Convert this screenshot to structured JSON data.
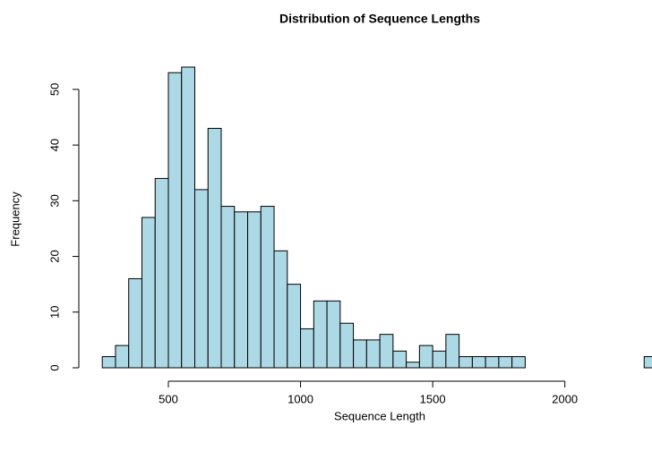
{
  "chart_data": {
    "type": "histogram",
    "title": "Distribution of Sequence Lengths",
    "x_label": "Sequence Length",
    "y_label": "Frequency",
    "bins": [
      250,
      300,
      350,
      400,
      450,
      500,
      550,
      600,
      650,
      700,
      750,
      800,
      850,
      900,
      950,
      1000,
      1050,
      1100,
      1150,
      1200,
      1250,
      1300,
      1350,
      1400,
      1450,
      1500,
      1550,
      1600,
      1650,
      1700,
      1750,
      1800,
      1850,
      1900,
      1950,
      2000,
      2050,
      2100,
      2150,
      2200,
      2250,
      2300,
      2350
    ],
    "values": [
      2,
      4,
      16,
      27,
      34,
      53,
      54,
      32,
      43,
      29,
      28,
      28,
      29,
      21,
      15,
      7,
      12,
      12,
      8,
      5,
      5,
      6,
      3,
      1,
      4,
      3,
      6,
      2,
      2,
      2,
      2,
      2,
      0,
      0,
      0,
      0,
      0,
      0,
      0,
      0,
      0,
      2
    ],
    "color": "#add8e6",
    "xlim": [
      250,
      2350
    ],
    "xticks": [
      500,
      1000,
      1500,
      2000
    ],
    "ylim": [
      0,
      54
    ],
    "yticks": [
      0,
      10,
      20,
      30,
      40,
      50
    ]
  }
}
